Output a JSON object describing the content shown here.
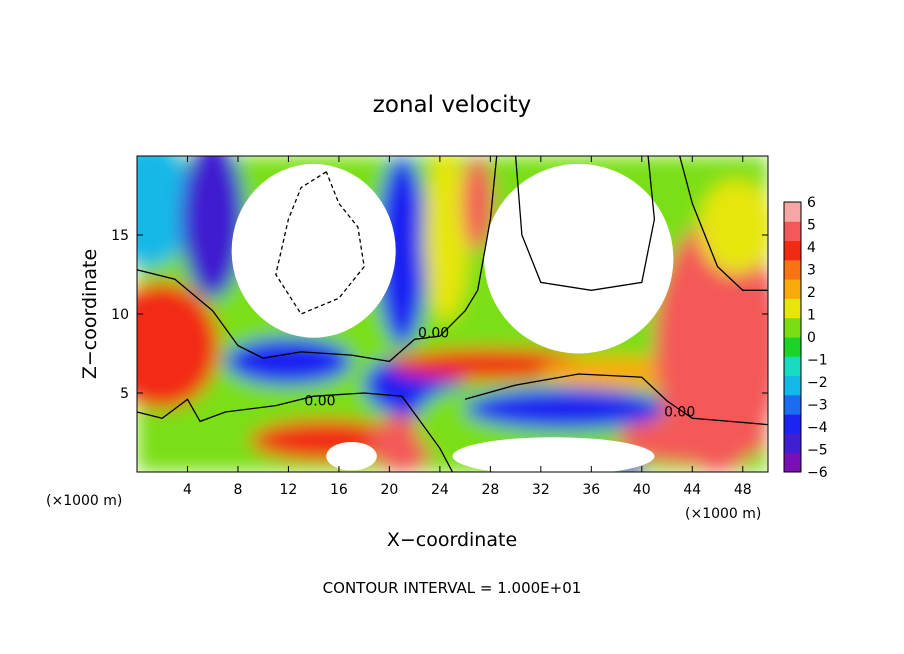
{
  "chart_data": {
    "type": "heatmap",
    "title": "zonal velocity",
    "xlabel": "X−coordinate",
    "ylabel": "Z−coordinate",
    "x_unit_left": "(×1000 m)",
    "x_unit_right": "(×1000 m)",
    "xlim": [
      0,
      50
    ],
    "ylim": [
      0,
      20
    ],
    "xticks": [
      4,
      8,
      12,
      16,
      20,
      24,
      28,
      32,
      36,
      40,
      44,
      48
    ],
    "yticks": [
      5,
      10,
      15
    ],
    "contour_interval_text": "CONTOUR INTERVAL = 1.000E+01",
    "contour_labels": [
      {
        "text": "0.00",
        "x": 14.5,
        "y": 4.2
      },
      {
        "text": "0.00",
        "x": 23.5,
        "y": 8.5
      },
      {
        "text": "0.00",
        "x": 43.0,
        "y": 3.5
      }
    ],
    "colorbar": {
      "range": [
        -6,
        6
      ],
      "labels": [
        "6",
        "5",
        "4",
        "3",
        "2",
        "1",
        "0",
        "−1",
        "−2",
        "−3",
        "−4",
        "−5",
        "−6"
      ],
      "colors": [
        "#7a10b4",
        "#3f1fd0",
        "#1d24f2",
        "#1c6cf0",
        "#12b8e8",
        "#16dcc0",
        "#1bd42a",
        "#7adf12",
        "#e6e60a",
        "#f8ab08",
        "#f87314",
        "#f22a14",
        "#f45858",
        "#f7a6a6"
      ]
    },
    "field_blobs": [
      {
        "x": 2.0,
        "y": 8.0,
        "rx": 4.5,
        "ry": 4.0,
        "v": 4.0
      },
      {
        "x": 1.0,
        "y": 17.0,
        "rx": 3.5,
        "ry": 4.0,
        "v": -2.5
      },
      {
        "x": 6.0,
        "y": 16.0,
        "rx": 2.5,
        "ry": 5.0,
        "v": -4.5
      },
      {
        "x": 12.0,
        "y": 7.0,
        "rx": 5.0,
        "ry": 1.5,
        "v": -4.0
      },
      {
        "x": 10.0,
        "y": 3.5,
        "rx": 4.0,
        "ry": 1.0,
        "v": 0.5
      },
      {
        "x": 15.0,
        "y": 2.0,
        "rx": 6.0,
        "ry": 1.3,
        "v": 3.5
      },
      {
        "x": 21.0,
        "y": 1.8,
        "rx": 2.5,
        "ry": 1.8,
        "v": 5.0
      },
      {
        "x": 22.0,
        "y": 5.5,
        "rx": 4.0,
        "ry": 2.0,
        "v": -4.0
      },
      {
        "x": 21.0,
        "y": 14.0,
        "rx": 2.0,
        "ry": 6.0,
        "v": -4.0
      },
      {
        "x": 24.5,
        "y": 15.0,
        "rx": 1.8,
        "ry": 5.5,
        "v": 1.5
      },
      {
        "x": 27.0,
        "y": 17.0,
        "rx": 1.2,
        "ry": 3.0,
        "v": 4.5
      },
      {
        "x": 28.0,
        "y": 6.8,
        "rx": 8.0,
        "ry": 1.0,
        "v": 4.0
      },
      {
        "x": 27.0,
        "y": 3.0,
        "rx": 5.0,
        "ry": 2.5,
        "v": 0.5
      },
      {
        "x": 34.0,
        "y": 4.0,
        "rx": 8.0,
        "ry": 1.3,
        "v": -3.5
      },
      {
        "x": 38.0,
        "y": 6.3,
        "rx": 6.0,
        "ry": 1.0,
        "v": 2.5
      },
      {
        "x": 46.0,
        "y": 8.0,
        "rx": 5.0,
        "ry": 8.0,
        "v": 4.5
      },
      {
        "x": 47.5,
        "y": 15.5,
        "rx": 3.0,
        "ry": 3.0,
        "v": 1.0
      },
      {
        "x": 44.0,
        "y": 2.0,
        "rx": 6.0,
        "ry": 1.5,
        "v": 4.5
      },
      {
        "x": 39.0,
        "y": 0.2,
        "rx": 1.0,
        "ry": 0.6,
        "v": -5.0
      }
    ],
    "white_regions": [
      {
        "x": 14.0,
        "y": 14.0,
        "rx": 6.5,
        "ry": 5.5
      },
      {
        "x": 35.0,
        "y": 13.5,
        "rx": 7.5,
        "ry": 6.0
      },
      {
        "x": 33.0,
        "y": 1.0,
        "rx": 8.0,
        "ry": 1.2
      },
      {
        "x": 17.0,
        "y": 1.0,
        "rx": 2.0,
        "ry": 0.9
      }
    ]
  }
}
